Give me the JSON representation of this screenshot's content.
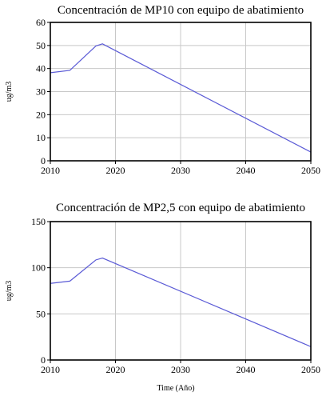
{
  "chart_data": [
    {
      "type": "line",
      "title": "Concentración de MP10 con equipo de abatimiento",
      "xlabel": "",
      "ylabel": "ug/m3",
      "xlim": [
        2010,
        2050
      ],
      "ylim": [
        0,
        60
      ],
      "x_ticks": [
        2010,
        2020,
        2030,
        2040,
        2050
      ],
      "y_ticks": [
        0,
        10,
        20,
        30,
        40,
        50,
        60
      ],
      "grid": true,
      "series": [
        {
          "color": "#5b5bd6",
          "points": [
            [
              2010,
              38.2
            ],
            [
              2013,
              39.2
            ],
            [
              2017,
              49.8
            ],
            [
              2018,
              50.7
            ],
            [
              2050,
              3.8
            ]
          ]
        }
      ]
    },
    {
      "type": "line",
      "title": "Concentración de MP2,5 con equipo de abatimiento",
      "xlabel": "Time (Año)",
      "ylabel": "ug/m3",
      "xlim": [
        2010,
        2050
      ],
      "ylim": [
        0,
        150
      ],
      "x_ticks": [
        2010,
        2020,
        2030,
        2040,
        2050
      ],
      "y_ticks": [
        0,
        50,
        100,
        150
      ],
      "grid": true,
      "series": [
        {
          "color": "#5b5bd6",
          "points": [
            [
              2010,
              83
            ],
            [
              2013,
              85.5
            ],
            [
              2017,
              108.5
            ],
            [
              2018,
              110.5
            ],
            [
              2050,
              14.5
            ]
          ]
        }
      ]
    }
  ]
}
